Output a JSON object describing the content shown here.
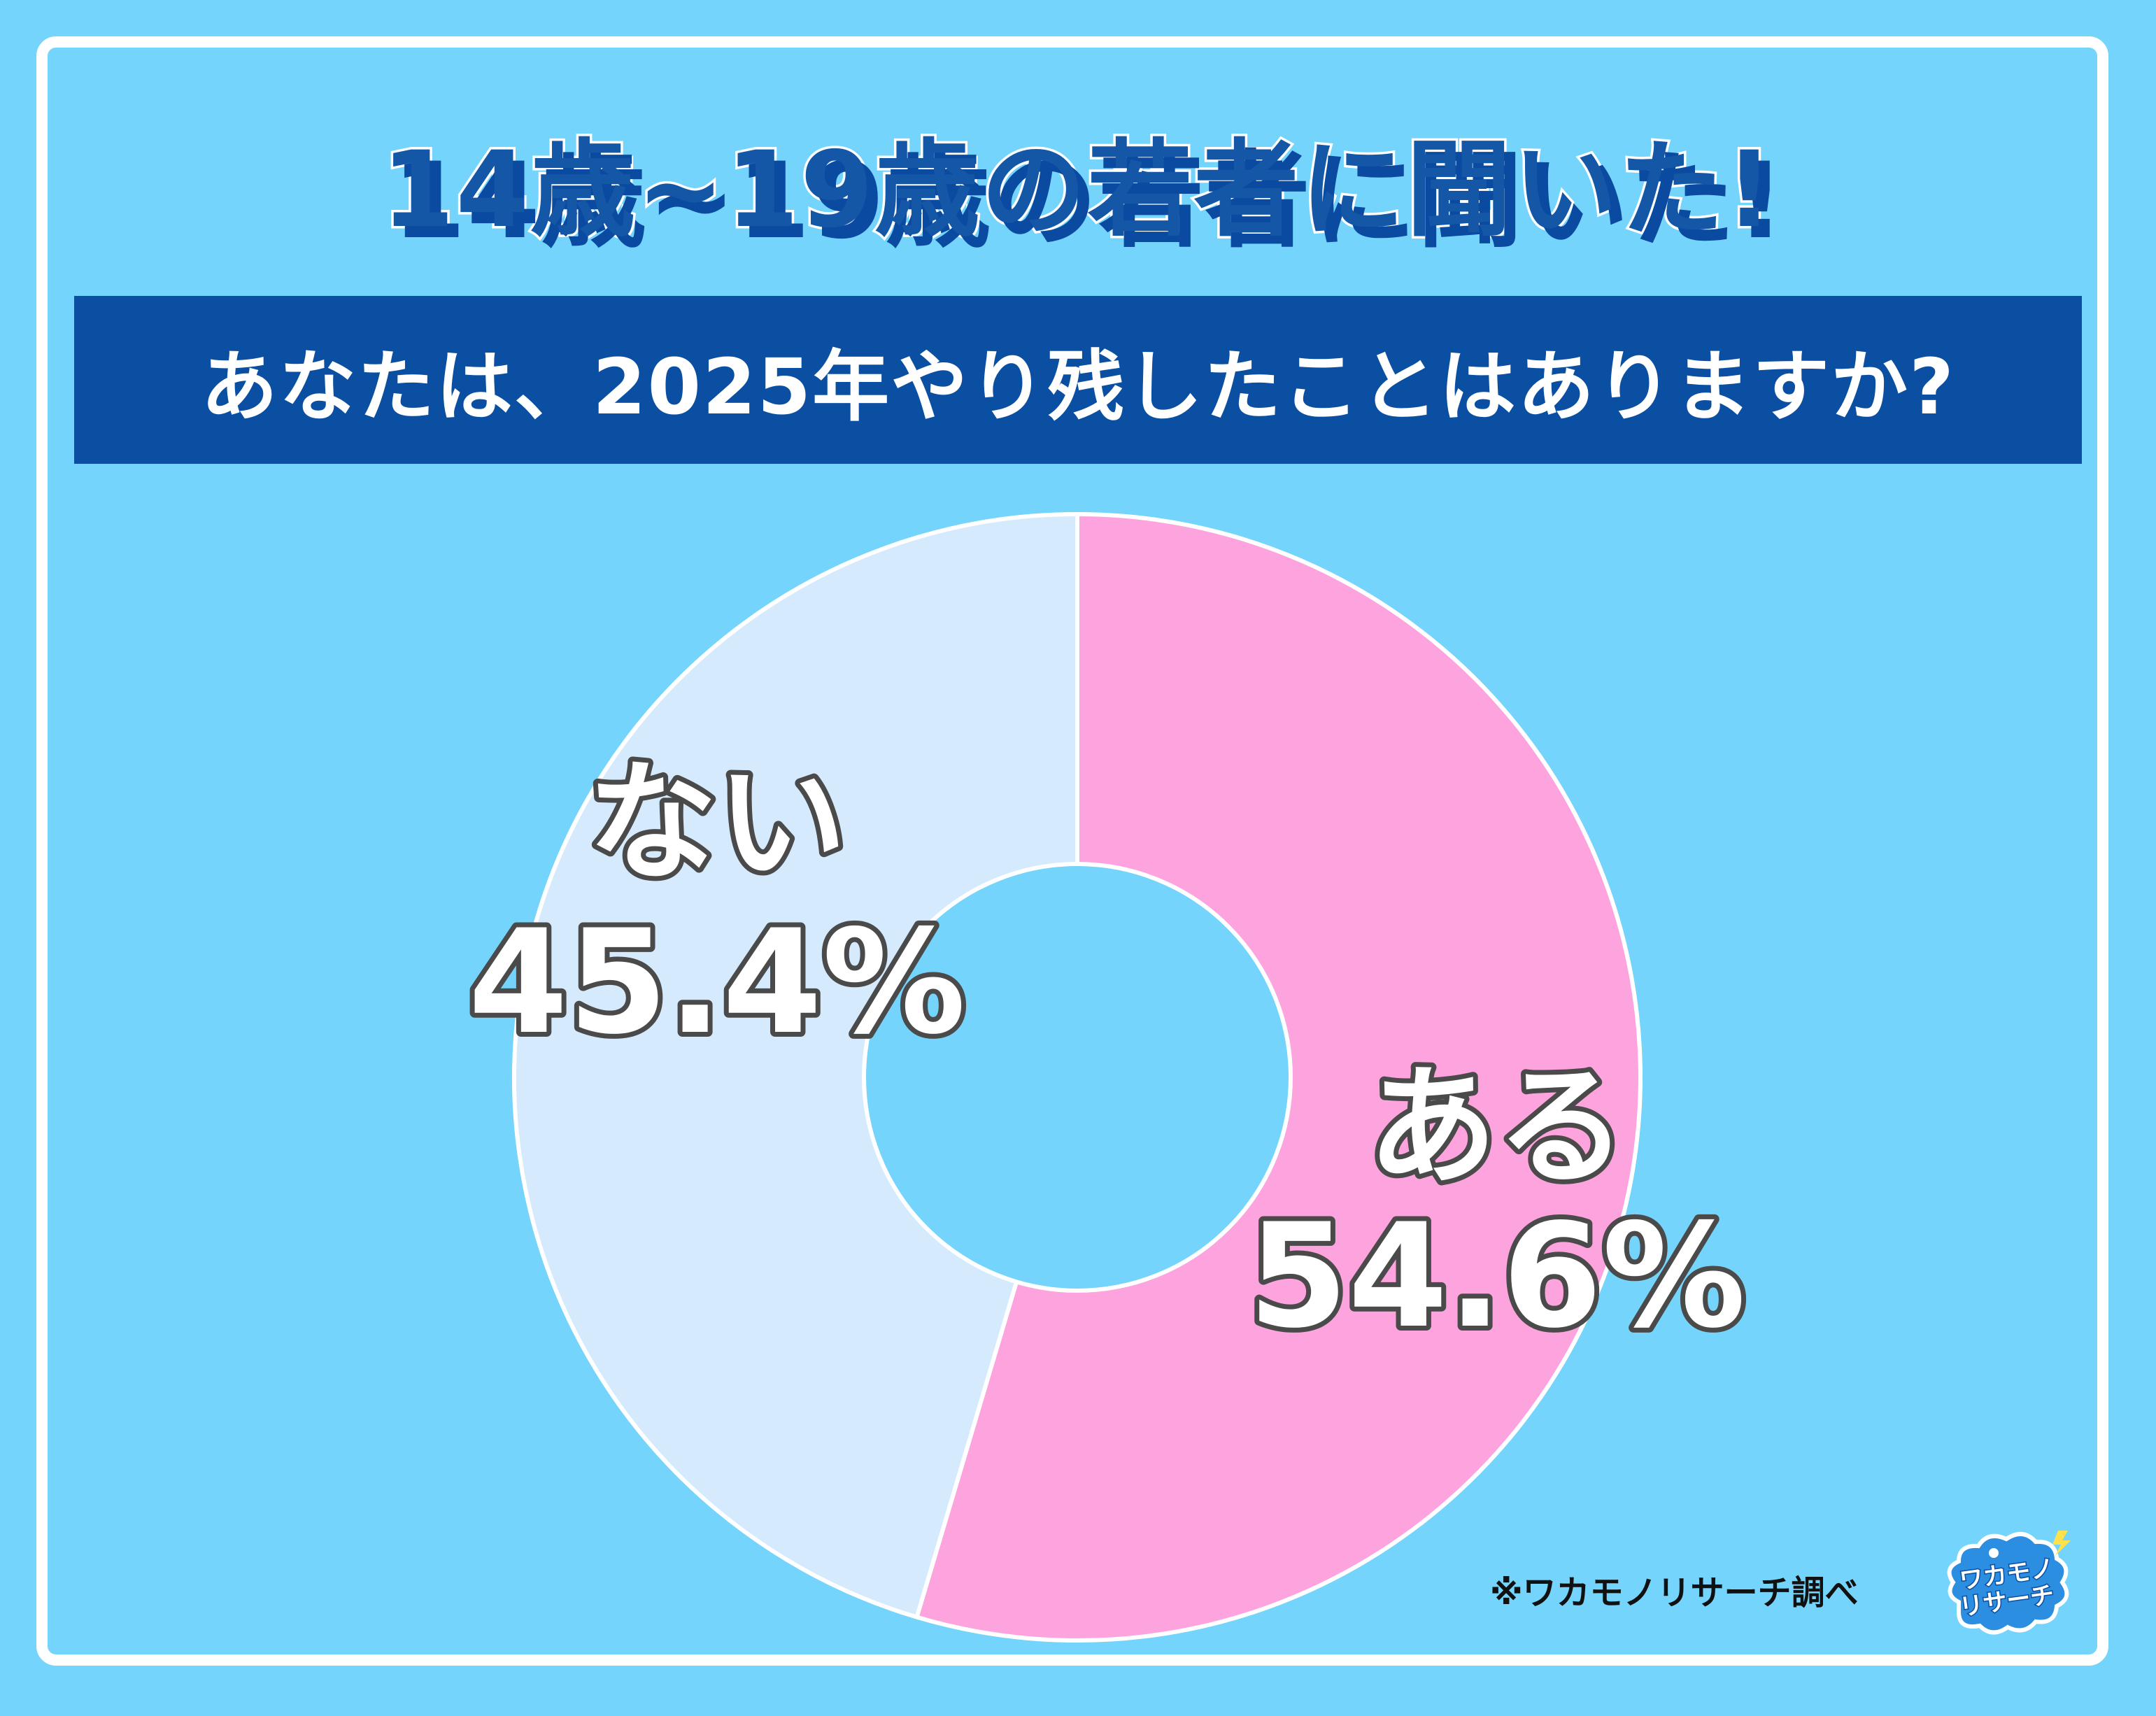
{
  "header": {
    "title": "14歳~19歳の若者に聞いた!",
    "question": "あなたは、2025年やり残したことはありますか?"
  },
  "chart_data": {
    "type": "pie",
    "donut": true,
    "title": "あなたは、2025年やり残したことはありますか?",
    "labels": [
      "ある",
      "ない"
    ],
    "values": [
      54.6,
      45.4
    ],
    "value_labels": [
      "54.6%",
      "45.4%"
    ],
    "colors": [
      "#fda3de",
      "#d5eafd"
    ],
    "start": "12 o'clock, clockwise",
    "legend": "none"
  },
  "footer": {
    "credit": "※ワカモノリサーチ調べ"
  },
  "logo": {
    "text_line1": "ワカモノ",
    "text_line2": "リサーチ",
    "color": "#2b8ee0"
  },
  "theme": {
    "background": "#74d4fb",
    "bar": "#0a4fa1",
    "title_color": "#1457a6"
  }
}
